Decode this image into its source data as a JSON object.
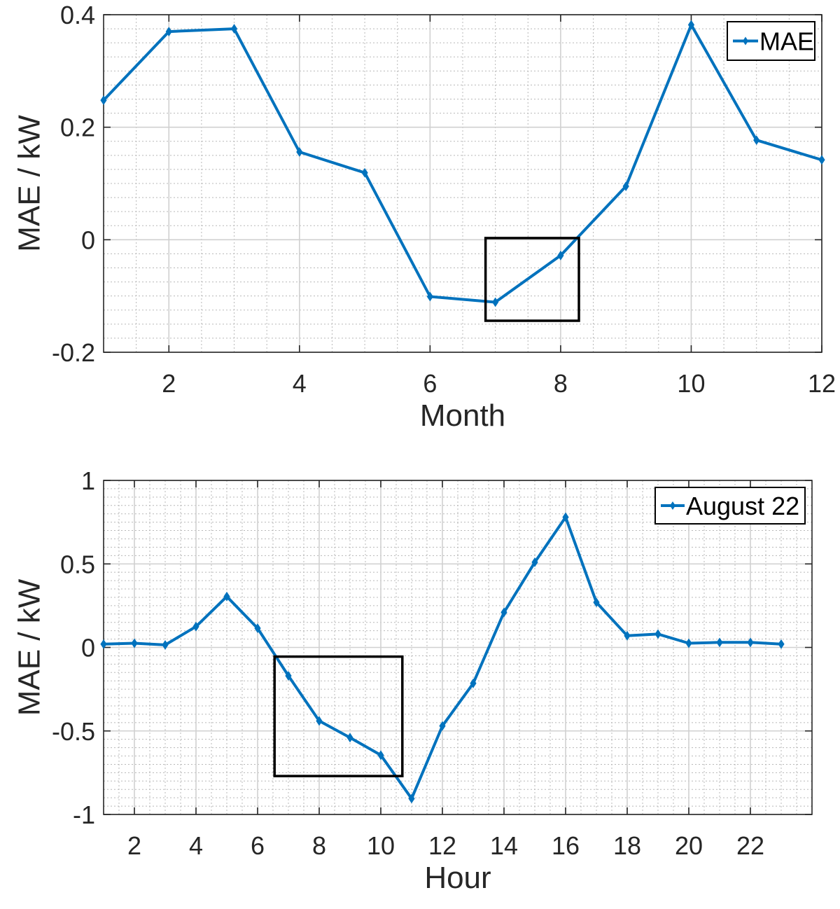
{
  "chart_data": [
    {
      "type": "line",
      "xlabel": "Month",
      "ylabel": "MAE / kW",
      "xlim": [
        1,
        12
      ],
      "ylim": [
        -0.2,
        0.4
      ],
      "xticks": [
        2,
        4,
        6,
        8,
        10,
        12
      ],
      "xtick_labels": [
        "2",
        "4",
        "6",
        "8",
        "10",
        "12"
      ],
      "yticks": [
        -0.2,
        0,
        0.2,
        0.4
      ],
      "ytick_labels": [
        "-0.2",
        "0",
        "0.2",
        "0.4"
      ],
      "minor_x_step": 0.5,
      "minor_y_step": 0.025,
      "grid": true,
      "legend_position": "top-right",
      "series": [
        {
          "name": "MAE",
          "color": "#0072BD",
          "x": [
            1,
            2,
            3,
            4,
            5,
            6,
            7,
            8,
            9,
            10,
            11,
            12
          ],
          "values": [
            0.248,
            0.37,
            0.375,
            0.156,
            0.119,
            -0.101,
            -0.111,
            -0.028,
            0.095,
            0.382,
            0.177,
            0.142
          ]
        }
      ],
      "annotation_box": {
        "x": [
          6.85,
          8.28
        ],
        "y": [
          -0.144,
          0.003
        ]
      }
    },
    {
      "type": "line",
      "xlabel": "Hour",
      "ylabel": "MAE / kW",
      "xlim": [
        1,
        24
      ],
      "ylim": [
        -1,
        1
      ],
      "xticks": [
        2,
        4,
        6,
        8,
        10,
        12,
        14,
        16,
        18,
        20,
        22
      ],
      "xtick_labels": [
        "2",
        "4",
        "6",
        "8",
        "10",
        "12",
        "14",
        "16",
        "18",
        "20",
        "22"
      ],
      "yticks": [
        -1,
        -0.5,
        0,
        0.5,
        1
      ],
      "ytick_labels": [
        "-1",
        "-0.5",
        "0",
        "0.5",
        "1"
      ],
      "minor_x_step": 0.5,
      "minor_y_step": 0.05,
      "grid": true,
      "legend_position": "top-right",
      "series": [
        {
          "name": "August 22",
          "color": "#0072BD",
          "x": [
            1,
            2,
            3,
            4,
            5,
            6,
            7,
            8,
            9,
            10,
            11,
            12,
            13,
            14,
            15,
            16,
            17,
            18,
            19,
            20,
            21,
            22,
            23
          ],
          "values": [
            0.02,
            0.025,
            0.015,
            0.125,
            0.305,
            0.115,
            -0.17,
            -0.44,
            -0.54,
            -0.645,
            -0.905,
            -0.47,
            -0.215,
            0.21,
            0.51,
            0.78,
            0.27,
            0.07,
            0.08,
            0.025,
            0.03,
            0.03,
            0.02
          ]
        }
      ],
      "annotation_box": {
        "x": [
          6.55,
          10.7
        ],
        "y": [
          -0.77,
          -0.055
        ]
      }
    }
  ]
}
